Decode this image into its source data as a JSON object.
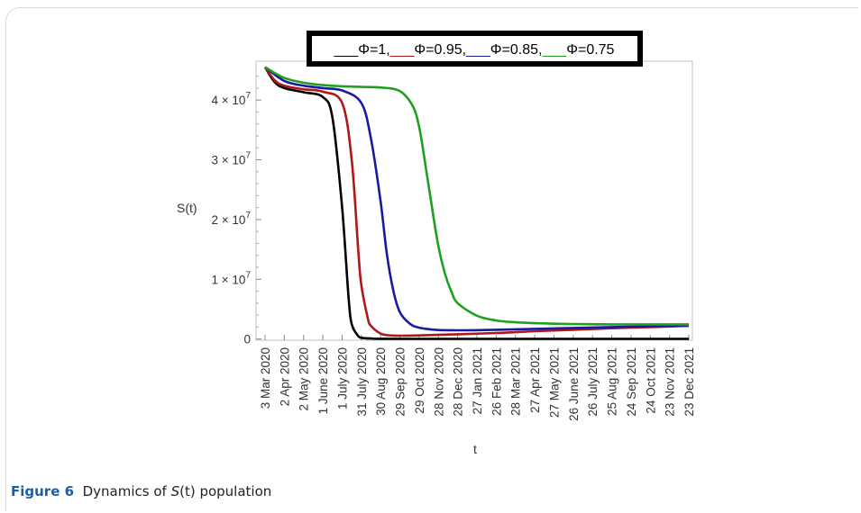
{
  "caption": {
    "label": "Figure 6",
    "text_before": "Dynamics of ",
    "symbol": "S",
    "symbol_arg": "(t)",
    "text_after": " population"
  },
  "chart_data": {
    "type": "line",
    "xlabel": "t",
    "ylabel": "S(t)",
    "ylim": [
      -200000,
      46500000
    ],
    "y_ticks": [
      {
        "value": 0,
        "label": "0"
      },
      {
        "value": 10000000,
        "label": "1 × 10",
        "exp": "7"
      },
      {
        "value": 20000000,
        "label": "2 × 10",
        "exp": "7"
      },
      {
        "value": 30000000,
        "label": "3 × 10",
        "exp": "7"
      },
      {
        "value": 40000000,
        "label": "4 × 10",
        "exp": "7"
      }
    ],
    "x_ticks": [
      "3 Mar 2020",
      "2 Apr 2020",
      "2 May 2020",
      "1 June 2020",
      "1 July 2020",
      "31 July 2020",
      "30 Aug 2020",
      "29 Sep 2020",
      "29 Oct 2020",
      "28 Nov 2020",
      "28 Dec 2020",
      "27 Jan 2021",
      "26 Feb 2021",
      "28 Mar 2021",
      "27 Apr 2021",
      "27 May 2021",
      "26 June 2021",
      "26 July 2021",
      "25 Aug 2021",
      "24 Sep 2021",
      "24 Oct 2021",
      "23 Nov 2021",
      "23 Dec 2021"
    ],
    "legend": {
      "placement": "top",
      "entries": [
        {
          "prefix": "___",
          "label": "Φ=1,",
          "color": "#000000"
        },
        {
          "prefix": "___",
          "label": "Φ=0.95,",
          "color": "#b01818"
        },
        {
          "prefix": "___",
          "label": "Φ=0.85,",
          "color": "#1a1aa0"
        },
        {
          "prefix": "___",
          "label": "Φ=0.75",
          "color": "#1fa01f"
        }
      ]
    },
    "series": [
      {
        "name": "Φ=1",
        "color": "#000000",
        "x": [
          "3 Mar 2020",
          "18 Mar 2020",
          "2 Apr 2020",
          "2 May 2020",
          "1 June 2020",
          "16 June 2020",
          "1 July 2020",
          "11 July 2020",
          "16 July 2020",
          "26 July 2020",
          "31 July 2020",
          "15 Aug 2020",
          "30 Aug 2020",
          "29 Oct 2020",
          "28 Dec 2020",
          "26 Feb 2021",
          "27 Apr 2021",
          "26 June 2021",
          "25 Aug 2021",
          "24 Oct 2021",
          "23 Dec 2021"
        ],
        "values": [
          45500000,
          43000000,
          42000000,
          41300000,
          40500000,
          37000000,
          22000000,
          7000000,
          2500000,
          500000,
          200000,
          80000,
          40000,
          30000,
          30000,
          30000,
          30000,
          30000,
          30000,
          30000,
          30000
        ]
      },
      {
        "name": "Φ=0.95",
        "color": "#b01818",
        "x": [
          "3 Mar 2020",
          "18 Mar 2020",
          "2 Apr 2020",
          "2 May 2020",
          "1 June 2020",
          "1 July 2020",
          "16 July 2020",
          "26 July 2020",
          "31 July 2020",
          "10 Aug 2020",
          "15 Aug 2020",
          "30 Aug 2020",
          "14 Sep 2020",
          "29 Sep 2020",
          "29 Oct 2020",
          "28 Dec 2020",
          "26 Feb 2021",
          "27 Apr 2021",
          "26 June 2021",
          "25 Aug 2021",
          "24 Oct 2021",
          "23 Dec 2021"
        ],
        "values": [
          45500000,
          43300000,
          42400000,
          41800000,
          41400000,
          39500000,
          30000000,
          15000000,
          9000000,
          3500000,
          2200000,
          900000,
          600000,
          550000,
          600000,
          800000,
          1000000,
          1300000,
          1550000,
          1800000,
          2000000,
          2200000
        ]
      },
      {
        "name": "Φ=0.85",
        "color": "#1a1aa0",
        "x": [
          "3 Mar 2020",
          "2 Apr 2020",
          "2 May 2020",
          "1 June 2020",
          "1 July 2020",
          "31 July 2020",
          "15 Aug 2020",
          "30 Aug 2020",
          "9 Sep 2020",
          "19 Sep 2020",
          "29 Sep 2020",
          "14 Oct 2020",
          "29 Oct 2020",
          "28 Nov 2020",
          "28 Dec 2020",
          "26 Feb 2021",
          "27 Apr 2021",
          "26 June 2021",
          "25 Aug 2021",
          "24 Oct 2021",
          "23 Dec 2021"
        ],
        "values": [
          45500000,
          43200000,
          42400000,
          42000000,
          41600000,
          39500000,
          33500000,
          23000000,
          14000000,
          8000000,
          4500000,
          2600000,
          1900000,
          1500000,
          1450000,
          1550000,
          1700000,
          1850000,
          2000000,
          2150000,
          2300000
        ]
      },
      {
        "name": "Φ=0.75",
        "color": "#1fa01f",
        "x": [
          "3 Mar 2020",
          "2 Apr 2020",
          "2 May 2020",
          "1 June 2020",
          "1 July 2020",
          "31 July 2020",
          "30 Aug 2020",
          "29 Sep 2020",
          "19 Oct 2020",
          "29 Oct 2020",
          "8 Nov 2020",
          "18 Nov 2020",
          "28 Nov 2020",
          "8 Dec 2020",
          "18 Dec 2020",
          "28 Dec 2020",
          "27 Jan 2021",
          "26 Feb 2021",
          "28 Mar 2021",
          "27 Apr 2021",
          "26 June 2021",
          "25 Aug 2021",
          "24 Oct 2021",
          "23 Dec 2021"
        ],
        "values": [
          45500000,
          43700000,
          42900000,
          42500000,
          42300000,
          42200000,
          42100000,
          41500000,
          39000000,
          35500000,
          29000000,
          22000000,
          15500000,
          11000000,
          8000000,
          6000000,
          3900000,
          3100000,
          2800000,
          2650000,
          2500000,
          2450000,
          2450000,
          2450000
        ]
      }
    ]
  }
}
